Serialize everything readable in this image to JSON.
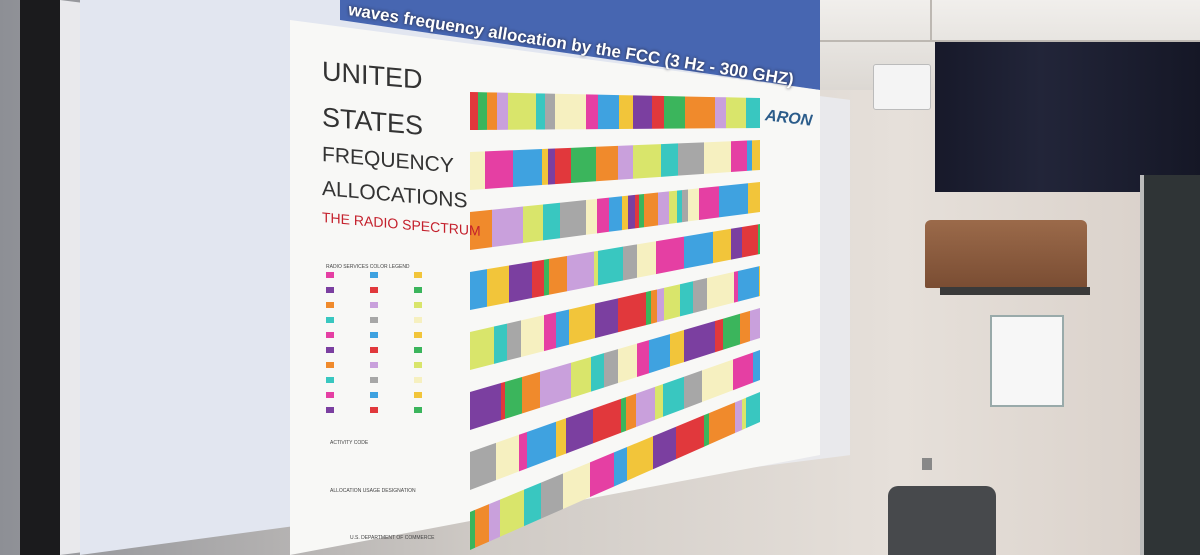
{
  "slide": {
    "title": "waves frequency allocation by the FCC (3 Hz - 300 GHZ)",
    "logo": "ARON",
    "chart_heading": [
      "UNITED",
      "STATES",
      "FREQUENCY",
      "ALLOCATIONS"
    ],
    "chart_subheading": "THE RADIO SPECTRUM",
    "legend_title": "RADIO SERVICES COLOR LEGEND",
    "activity_code": "ACTIVITY CODE",
    "allocation_usage": "ALLOCATION USAGE DESIGNATION",
    "department": "U.S. DEPARTMENT OF COMMERCE"
  },
  "colors": {
    "spectrum": [
      "#e53fa3",
      "#3fa2e0",
      "#f2c53a",
      "#7b3fa0",
      "#e1383c",
      "#3bb55c",
      "#f08a2c",
      "#c9a0dc",
      "#d9e56b",
      "#39c7c0",
      "#a7a7a7",
      "#f6f0c0"
    ]
  }
}
